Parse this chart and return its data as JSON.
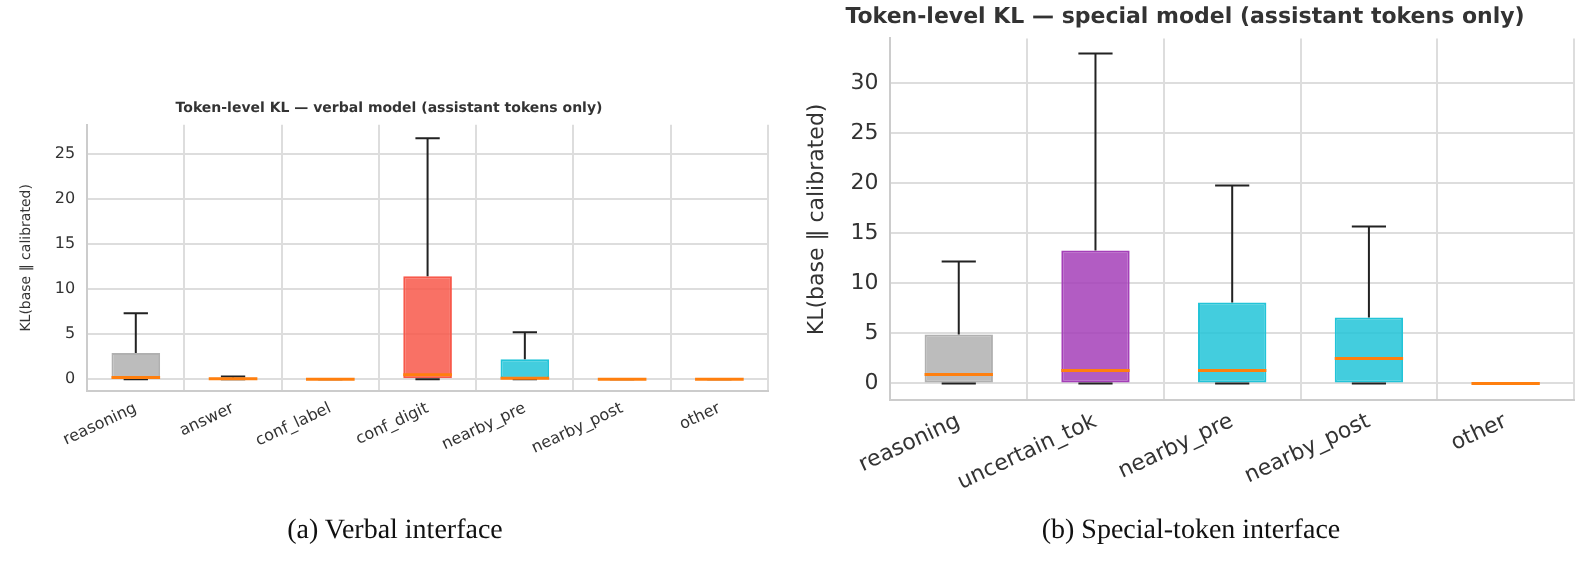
{
  "chart_data": [
    {
      "type": "box",
      "title": "Token-level KL — verbal model (assistant tokens only)",
      "ylabel": "KL(base ‖ calibrated)",
      "categories": [
        "reasoning",
        "answer",
        "conf_label",
        "conf_digit",
        "nearby_pre",
        "nearby_post",
        "other"
      ],
      "boxes": [
        {
          "low": 0,
          "q1": 0,
          "median": 0.2,
          "q3": 2.9,
          "high": 7.3
        },
        {
          "low": 0,
          "q1": 0,
          "median": 0.05,
          "q3": 0.15,
          "high": 0.3
        },
        {
          "low": 0,
          "q1": 0,
          "median": 0,
          "q3": 0,
          "high": 0
        },
        {
          "low": 0,
          "q1": 0,
          "median": 0.5,
          "q3": 11.4,
          "high": 26.7
        },
        {
          "low": 0,
          "q1": 0,
          "median": 0.1,
          "q3": 2.2,
          "high": 5.2
        },
        {
          "low": 0,
          "q1": 0,
          "median": 0,
          "q3": 0,
          "high": 0
        },
        {
          "low": 0,
          "q1": 0,
          "median": 0,
          "q3": 0,
          "high": 0
        }
      ],
      "colors": [
        "#b0b0b0",
        "#c07030",
        "#ff7f0e",
        "#f8584a",
        "#22c4d8",
        "#ff7f0e",
        "#ff7f0e"
      ],
      "ylim": [
        -1.3,
        28.2
      ],
      "yticks": [
        0,
        5,
        10,
        15,
        20,
        25
      ],
      "grid": true,
      "annotations": [
        "(a) Verbal interface"
      ]
    },
    {
      "type": "box",
      "title": "Token-level KL — special model (assistant tokens only)",
      "ylabel": "KL(base ‖ calibrated)",
      "categories": [
        "reasoning",
        "uncertain_tok",
        "nearby_pre",
        "nearby_post",
        "other"
      ],
      "boxes": [
        {
          "low": 0,
          "q1": 0,
          "median": 0.9,
          "q3": 4.9,
          "high": 12.2
        },
        {
          "low": 0,
          "q1": 0,
          "median": 1.3,
          "q3": 13.3,
          "high": 33.0
        },
        {
          "low": 0,
          "q1": 0.1,
          "median": 1.3,
          "q3": 8.1,
          "high": 19.8
        },
        {
          "low": 0,
          "q1": 0.1,
          "median": 2.5,
          "q3": 6.6,
          "high": 15.7
        },
        {
          "low": 0,
          "q1": 0,
          "median": 0,
          "q3": 0,
          "high": 0
        }
      ],
      "colors": [
        "#b0b0b0",
        "#a43fb8",
        "#22c4d8",
        "#22c4d8",
        "#ff7f0e"
      ],
      "ylim": [
        -1.7,
        34.5
      ],
      "yticks": [
        0,
        5,
        10,
        15,
        20,
        25,
        30
      ],
      "grid": true,
      "annotations": [
        "(b) Special-token interface"
      ]
    }
  ]
}
